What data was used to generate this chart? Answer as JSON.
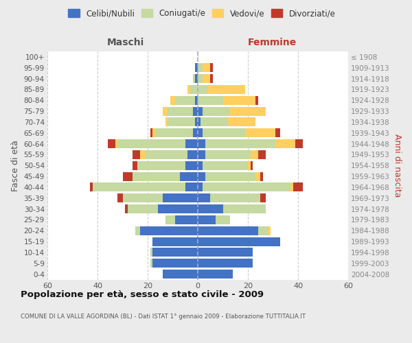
{
  "age_groups": [
    "0-4",
    "5-9",
    "10-14",
    "15-19",
    "20-24",
    "25-29",
    "30-34",
    "35-39",
    "40-44",
    "45-49",
    "50-54",
    "55-59",
    "60-64",
    "65-69",
    "70-74",
    "75-79",
    "80-84",
    "85-89",
    "90-94",
    "95-99",
    "100+"
  ],
  "birth_years": [
    "2004-2008",
    "1999-2003",
    "1994-1998",
    "1989-1993",
    "1984-1988",
    "1979-1983",
    "1974-1978",
    "1969-1973",
    "1964-1968",
    "1959-1963",
    "1954-1958",
    "1949-1953",
    "1944-1948",
    "1939-1943",
    "1934-1938",
    "1929-1933",
    "1924-1928",
    "1919-1923",
    "1914-1918",
    "1909-1913",
    "≤ 1908"
  ],
  "males_celibi": [
    14,
    18,
    18,
    18,
    23,
    9,
    16,
    14,
    5,
    7,
    5,
    4,
    5,
    2,
    1,
    2,
    1,
    0,
    1,
    1,
    0
  ],
  "males_coniugati": [
    0,
    1,
    1,
    0,
    2,
    4,
    12,
    16,
    37,
    19,
    19,
    17,
    27,
    15,
    11,
    10,
    8,
    3,
    1,
    0,
    0
  ],
  "males_vedovi": [
    0,
    0,
    0,
    0,
    0,
    0,
    0,
    0,
    0,
    0,
    0,
    2,
    1,
    1,
    1,
    2,
    2,
    1,
    0,
    0,
    0
  ],
  "males_divorziati": [
    0,
    0,
    0,
    0,
    0,
    0,
    1,
    2,
    1,
    4,
    2,
    3,
    3,
    1,
    0,
    0,
    0,
    0,
    0,
    0,
    0
  ],
  "females_nubili": [
    14,
    22,
    22,
    33,
    24,
    7,
    10,
    5,
    2,
    3,
    2,
    3,
    3,
    2,
    1,
    2,
    0,
    0,
    0,
    0,
    0
  ],
  "females_coniugate": [
    0,
    0,
    0,
    0,
    4,
    6,
    17,
    20,
    35,
    20,
    18,
    18,
    28,
    17,
    11,
    11,
    10,
    4,
    2,
    2,
    0
  ],
  "females_vedove": [
    0,
    0,
    0,
    0,
    1,
    0,
    0,
    0,
    1,
    2,
    1,
    3,
    8,
    12,
    11,
    14,
    13,
    15,
    3,
    3,
    0
  ],
  "females_divorziate": [
    0,
    0,
    0,
    0,
    0,
    0,
    0,
    2,
    4,
    1,
    1,
    3,
    3,
    2,
    0,
    0,
    1,
    0,
    1,
    1,
    0
  ],
  "color_celibi": "#4472C4",
  "color_coniugati": "#C5D9A0",
  "color_vedovi": "#FFD060",
  "color_divorziati": "#C0392B",
  "bg_color": "#ebebeb",
  "plot_bg": "#ffffff",
  "xlim": 60,
  "title": "Popolazione per età, sesso e stato civile - 2009",
  "subtitle": "COMUNE DI LA VALLE AGORDINA (BL) - Dati ISTAT 1° gennaio 2009 - Elaborazione TUTTITALIA.IT",
  "label_maschi": "Maschi",
  "label_femmine": "Femmine",
  "ylabel_left": "Fasce di età",
  "ylabel_right": "Anni di nascita",
  "legend_labels": [
    "Celibi/Nubili",
    "Coniugati/e",
    "Vedovi/e",
    "Divorziati/e"
  ]
}
